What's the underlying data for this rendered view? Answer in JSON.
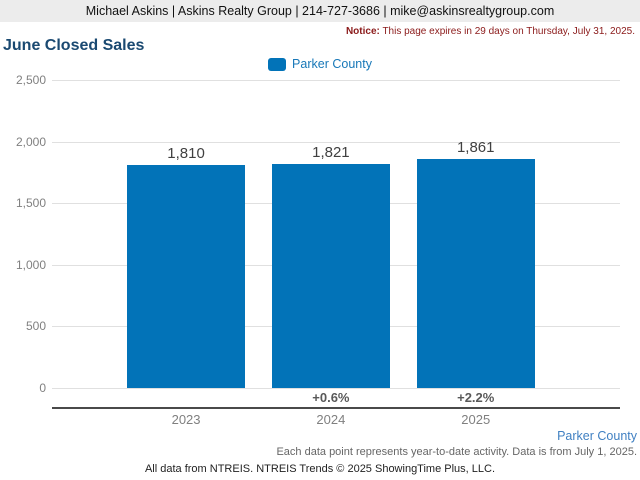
{
  "header": {
    "contact": "Michael Askins | Askins Realty Group | 214-727-3686 | mike@askinsrealtygroup.com"
  },
  "notice": {
    "label": "Notice:",
    "text": " This page expires in 29 days on Thursday, July 31, 2025."
  },
  "title": "June Closed Sales",
  "legend": {
    "label": "Parker County"
  },
  "chart_data": {
    "type": "bar",
    "title": "June Closed Sales",
    "series_name": "Parker County",
    "categories": [
      "2023",
      "2024",
      "2025"
    ],
    "values": [
      1810,
      1821,
      1861
    ],
    "value_labels": [
      "1,810",
      "1,821",
      "1,861"
    ],
    "pct_change_labels": [
      "",
      "+0.6%",
      "+2.2%"
    ],
    "ylim": [
      0,
      2500
    ],
    "yticks": [
      0,
      500,
      1000,
      1500,
      2000,
      2500
    ],
    "ytick_labels": [
      "0",
      "500",
      "1,000",
      "1,500",
      "2,000",
      "2,500"
    ],
    "bar_color": "#0273b8",
    "grid": true,
    "legend_position": "top"
  },
  "footer": {
    "series_note": "Parker County",
    "data_note": "Each data point represents year-to-date activity. Data is from July 1, 2025.",
    "attribution": "All data from NTREIS. NTREIS Trends © 2025 ShowingTime Plus, LLC."
  }
}
